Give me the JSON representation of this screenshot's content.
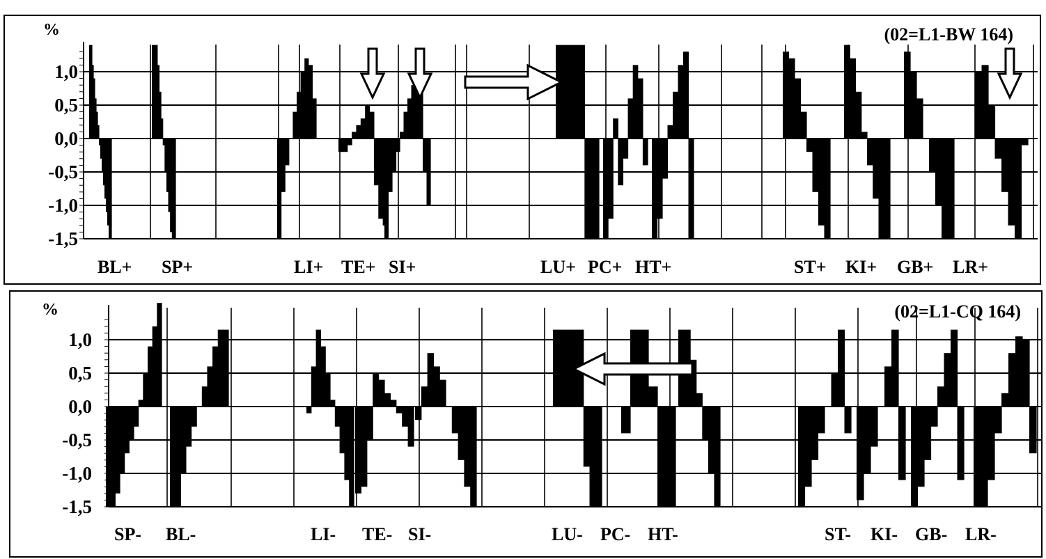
{
  "charts": [
    {
      "id": "top",
      "type": "bar",
      "annotation": "(02=L1-BW 164)",
      "unit_label": "%",
      "yticks": [
        "1,0",
        "0,5",
        "0,0",
        "-0,5",
        "-1,0",
        "-1,5"
      ],
      "ylim": [
        -1.5,
        1.4
      ],
      "grid": "on",
      "series_labels": [
        "BL+",
        "SP+",
        "LI+",
        "TE+",
        "SI+",
        "LU+",
        "PC+",
        "HT+",
        "ST+",
        "KI+",
        "GB+",
        "LR+"
      ],
      "arrows": [
        "down",
        "down",
        "right",
        "down"
      ]
    },
    {
      "id": "bottom",
      "type": "bar",
      "annotation": "(02=L1-CQ 164)",
      "unit_label": "%",
      "yticks": [
        "1,0",
        "0,5",
        "0,0",
        "-0,5",
        "-1,0",
        "-1,5"
      ],
      "ylim": [
        -1.5,
        1.55
      ],
      "grid": "on",
      "series_labels": [
        "SP-",
        "BL-",
        "LI-",
        "TE-",
        "SI-",
        "LU-",
        "PC-",
        "HT-",
        "ST-",
        "KI-",
        "GB-",
        "LR-"
      ],
      "arrows": [
        "left"
      ]
    }
  ],
  "chart_data": [
    {
      "type": "bar",
      "title": "",
      "xlabel": "",
      "ylabel": "%",
      "ylim": [
        -1.5,
        1.4
      ],
      "grid": true,
      "groups": [
        {
          "label": "BL+",
          "values": [
            1.4,
            1.4,
            1.1,
            0.9,
            0.6,
            0.4,
            0.2,
            -0.1,
            -0.3,
            -0.5,
            -0.7,
            -0.9,
            -1.1,
            -1.3,
            -1.5,
            -1.5
          ]
        },
        {
          "label": "SP+",
          "values": [
            1.4,
            1.4,
            1.4,
            1.1,
            0.7,
            0.3,
            -0.1,
            -0.5,
            -0.8,
            -1.1,
            -1.4,
            -1.5,
            -1.5
          ]
        },
        {
          "label": "LI+",
          "values": [
            -1.5,
            -0.8,
            -0.4,
            0.0,
            0.4,
            0.7,
            1.0,
            1.2,
            1.1,
            0.6
          ]
        },
        {
          "label": "TE+",
          "values": [
            -0.2,
            -0.2,
            -0.1,
            0.1,
            0.2,
            0.3,
            0.5,
            0.4,
            -0.7,
            -1.2,
            -1.3
          ]
        },
        {
          "label": "SI+",
          "values": [
            -1.5,
            -0.8,
            -0.5,
            -0.2,
            0.1,
            0.4,
            0.6,
            0.8,
            1.1,
            1.1,
            -0.5,
            -1.0
          ]
        },
        {
          "label": "LU+",
          "values": [
            1.4,
            1.4,
            1.4,
            1.4,
            1.4,
            1.4,
            -1.5,
            -1.5,
            -1.5
          ]
        },
        {
          "label": "PC+",
          "values": [
            -1.5,
            -1.2,
            0.3,
            -0.7,
            -0.3,
            0.6,
            1.1,
            0.9,
            -0.4
          ]
        },
        {
          "label": "HT+",
          "values": [
            -1.5,
            -1.2,
            -0.6,
            0.2,
            0.7,
            1.1,
            1.3,
            -1.5
          ]
        },
        {
          "label": "ST+",
          "values": [
            1.3,
            1.2,
            0.9,
            0.4,
            -0.2,
            -0.8,
            -1.3,
            -1.5
          ]
        },
        {
          "label": "KI+",
          "values": [
            1.4,
            1.2,
            0.7,
            0.1,
            -0.4,
            -0.9,
            -1.5,
            -1.5
          ]
        },
        {
          "label": "GB+",
          "values": [
            1.3,
            1.0,
            0.6,
            0.0,
            -0.5,
            -1.0,
            -1.5,
            -1.5
          ]
        },
        {
          "label": "LR+",
          "values": [
            1.0,
            1.1,
            0.5,
            -0.3,
            -0.8,
            -1.3,
            -1.5,
            -0.1
          ]
        }
      ]
    },
    {
      "type": "bar",
      "title": "",
      "xlabel": "",
      "ylabel": "%",
      "ylim": [
        -1.5,
        1.55
      ],
      "grid": true,
      "groups": [
        {
          "label": "SP-",
          "values": [
            -1.5,
            -1.5,
            -1.3,
            -1.0,
            -0.7,
            -0.5,
            -0.3,
            0.1,
            0.5,
            0.9,
            1.2,
            1.55
          ]
        },
        {
          "label": "BL-",
          "values": [
            -1.5,
            -1.5,
            -1.0,
            -0.6,
            -0.3,
            0.0,
            0.3,
            0.6,
            0.9,
            1.15,
            1.15
          ]
        },
        {
          "label": "LI-",
          "values": [
            -0.1,
            0.6,
            1.15,
            0.9,
            0.5,
            0.1,
            -0.3,
            -0.7,
            -1.1,
            -1.5
          ]
        },
        {
          "label": "TE-",
          "values": [
            -1.3,
            -1.2,
            -0.5,
            0.5,
            0.4,
            0.2,
            0.1,
            -0.1,
            -0.3,
            -0.6
          ]
        },
        {
          "label": "SI-",
          "values": [
            -0.2,
            0.3,
            0.8,
            0.6,
            0.4,
            0.0,
            -0.4,
            -0.8,
            -1.2,
            -1.5
          ]
        },
        {
          "label": "LU-",
          "values": [
            1.15,
            1.15,
            1.15,
            1.15,
            1.15,
            -0.9,
            -1.5,
            -1.5
          ]
        },
        {
          "label": "PC-",
          "values": [
            -0.4,
            1.15,
            1.15,
            0.3,
            -1.5,
            -1.5
          ]
        },
        {
          "label": "HT-",
          "values": [
            1.15,
            1.15,
            0.7,
            0.2,
            -0.5,
            -1.0,
            -1.5
          ]
        },
        {
          "label": "ST-",
          "values": [
            -1.5,
            -1.2,
            -0.8,
            -0.4,
            0.0,
            0.5,
            1.15,
            -0.4
          ]
        },
        {
          "label": "KI-",
          "values": [
            -1.4,
            -1.0,
            -0.6,
            0.0,
            0.6,
            1.15,
            -1.1
          ]
        },
        {
          "label": "GB-",
          "values": [
            -1.5,
            -1.2,
            -0.8,
            -0.3,
            0.3,
            0.8,
            1.15,
            -1.1
          ]
        },
        {
          "label": "LR-",
          "values": [
            -1.5,
            -1.5,
            -1.1,
            -0.4,
            0.2,
            0.8,
            1.05,
            1.0,
            -0.7
          ]
        }
      ]
    }
  ]
}
